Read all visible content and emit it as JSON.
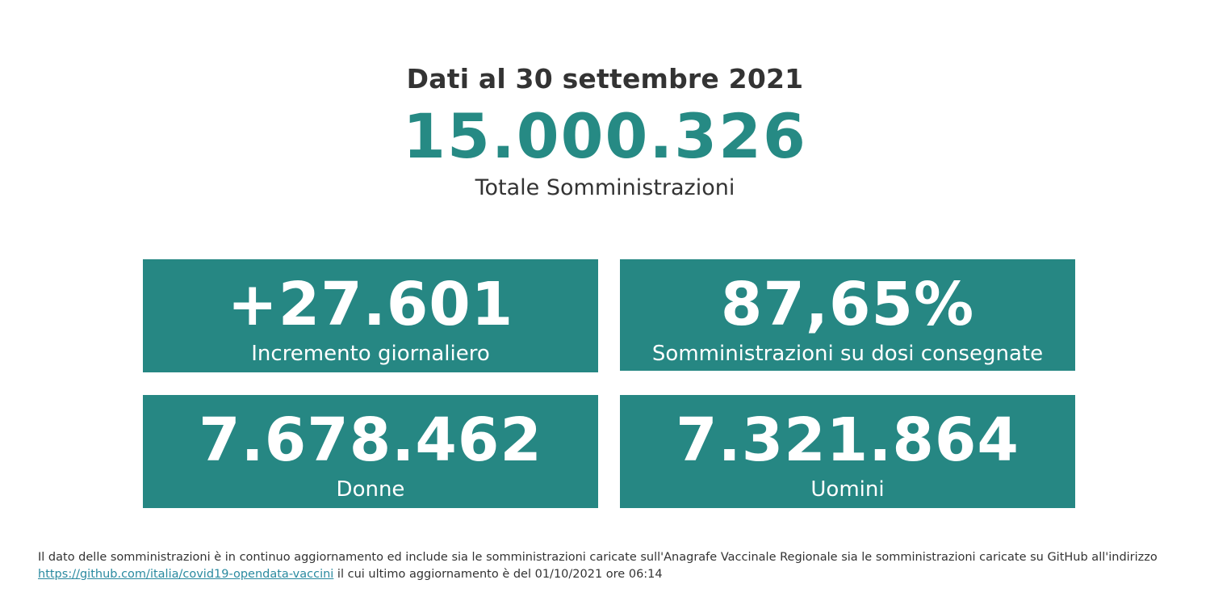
{
  "header": {
    "date_line": "Dati al 30 settembre 2021",
    "total_value": "15.000.326",
    "total_label": "Totale Somministrazioni"
  },
  "cards": {
    "incremento": {
      "value": "+27.601",
      "label": "Incremento giornaliero"
    },
    "percentuale": {
      "value": "87,65%",
      "label": "Somministrazioni su dosi consegnate"
    },
    "donne": {
      "value": "7.678.462",
      "label": "Donne"
    },
    "uomini": {
      "value": "7.321.864",
      "label": "Uomini"
    }
  },
  "footnote": {
    "text_before": "Il dato delle somministrazioni è in continuo aggiornamento ed include sia le somministrazioni caricate sull'Anagrafe Vaccinale Regionale sia le somministrazioni caricate su GitHub all'indirizzo",
    "link_text": "https://github.com/italia/covid19-opendata-vaccini",
    "text_after": " il cui ultimo aggiornamento è del 01/10/2021 ore 06:14"
  },
  "colors": {
    "accent": "#268a84",
    "card_bg": "#268783",
    "text": "#333333",
    "link": "#2a8aa0"
  }
}
